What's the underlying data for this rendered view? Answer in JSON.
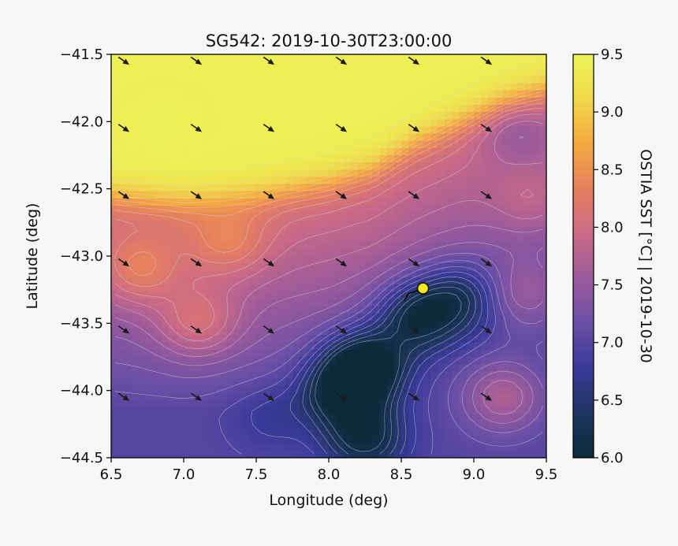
{
  "chart_data": {
    "type": "heatmap",
    "title": "SG542: 2019-10-30T23:00:00",
    "xlabel": "Longitude (deg)",
    "ylabel": "Latitude (deg)",
    "xlim": [
      6.5,
      9.5
    ],
    "ylim": [
      -44.5,
      -41.5
    ],
    "xticks": [
      6.5,
      7.0,
      7.5,
      8.0,
      8.5,
      9.0,
      9.5
    ],
    "xtick_labels": [
      "6.5",
      "7.0",
      "7.5",
      "8.0",
      "8.5",
      "9.0",
      "9.5"
    ],
    "yticks": [
      -41.5,
      -42.0,
      -42.5,
      -43.0,
      -43.5,
      -44.0,
      -44.5
    ],
    "ytick_labels": [
      "−41.5",
      "−42.0",
      "−42.5",
      "−43.0",
      "−43.5",
      "−44.0",
      "−44.5"
    ],
    "colorbar": {
      "label": "OSTIA SST [°C] | 2019-10-30",
      "range": [
        6.0,
        9.5
      ],
      "ticks": [
        6.0,
        6.5,
        7.0,
        7.5,
        8.0,
        8.5,
        9.0,
        9.5
      ],
      "tick_labels": [
        "6.0",
        "6.5",
        "7.0",
        "7.5",
        "8.0",
        "8.5",
        "9.0",
        "9.5"
      ],
      "colormap": [
        "#0b2a3a",
        "#1e3560",
        "#3a3a9a",
        "#6a4fa6",
        "#9a5a9c",
        "#cc6a86",
        "#e6805f",
        "#f5a840",
        "#f0d84a",
        "#eef75a"
      ]
    },
    "sst_features": {
      "background_south": 7.0,
      "warm_north": 9.4,
      "front_latitude": [
        [
          6.5,
          -42.55
        ],
        [
          7.0,
          -42.6
        ],
        [
          7.5,
          -42.55
        ],
        [
          8.0,
          -42.45
        ],
        [
          8.3,
          -42.35
        ],
        [
          8.6,
          -42.15
        ],
        [
          8.9,
          -42.0
        ],
        [
          9.2,
          -41.85
        ],
        [
          9.5,
          -41.75
        ]
      ],
      "anomalies": [
        {
          "lon": 6.85,
          "lat": -42.05,
          "delta": 0.15
        },
        {
          "lon": 7.1,
          "lat": -43.5,
          "delta": 0.6
        },
        {
          "lon": 8.1,
          "lat": -44.0,
          "delta": -1.0
        },
        {
          "lon": 8.25,
          "lat": -43.8,
          "delta": -1.2
        },
        {
          "lon": 8.6,
          "lat": -43.45,
          "delta": -1.0
        },
        {
          "lon": 8.9,
          "lat": -43.3,
          "delta": -0.8
        },
        {
          "lon": 8.25,
          "lat": -44.35,
          "delta": -0.9
        },
        {
          "lon": 7.6,
          "lat": -44.2,
          "delta": -0.25
        },
        {
          "lon": 9.2,
          "lat": -44.05,
          "delta": 0.7
        },
        {
          "lon": 9.35,
          "lat": -43.3,
          "delta": 0.5
        },
        {
          "lon": 9.4,
          "lat": -42.6,
          "delta": 0.3
        },
        {
          "lon": 9.3,
          "lat": -42.05,
          "delta": -0.4
        },
        {
          "lon": 6.7,
          "lat": -43.1,
          "delta": 0.6
        },
        {
          "lon": 7.3,
          "lat": -42.9,
          "delta": 0.5
        }
      ]
    },
    "velocity_arrows": {
      "lons": [
        6.55,
        7.05,
        7.55,
        8.05,
        8.55,
        9.05
      ],
      "lats": [
        -41.52,
        -42.02,
        -42.52,
        -43.02,
        -43.52,
        -44.02
      ],
      "direction": [
        1,
        -0.7
      ]
    },
    "glider_track": {
      "lon": [
        8.52,
        8.55,
        8.6,
        8.65
      ],
      "lat": [
        -43.33,
        -43.28,
        -43.26,
        -43.24
      ],
      "position": {
        "lon": 8.65,
        "lat": -43.24
      },
      "marker_color": "#f2ea1a"
    }
  }
}
